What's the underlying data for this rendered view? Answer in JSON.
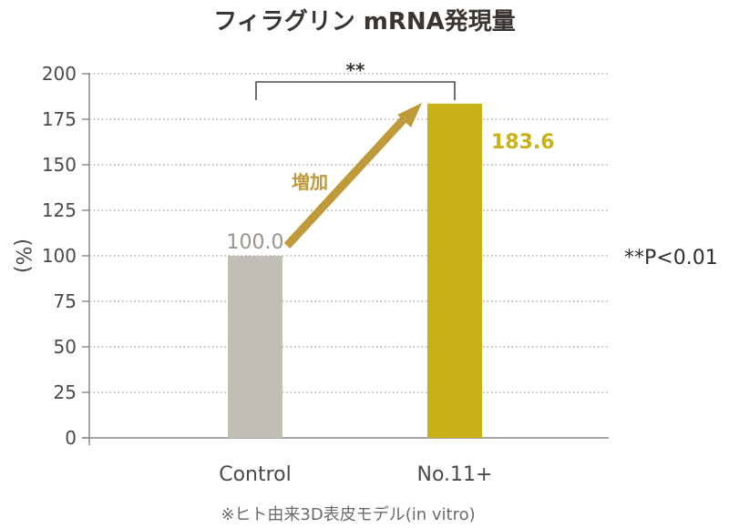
{
  "chart_data": {
    "type": "bar",
    "title": "フィラグリン mRNA発現量",
    "ylabel": "(%)",
    "xlabel": "",
    "ylim": [
      0,
      200
    ],
    "yticks": [
      0,
      25,
      50,
      75,
      100,
      125,
      150,
      175,
      200
    ],
    "grid": true,
    "categories": [
      "Control",
      "No.11+"
    ],
    "values": [
      100.0,
      183.6
    ],
    "data_labels": [
      "100.0",
      "183.6"
    ],
    "colors": [
      "#c2bdb6",
      "#c9b11a"
    ],
    "label_colors": [
      "#9a948d",
      "#c9b11a"
    ],
    "arrow_label": "増加",
    "arrow_color": "#bf9a3a",
    "significance": "**",
    "p_value_note": "**P<0.01",
    "footnote": "※ヒト由来3D表皮モデル(in vitro)"
  }
}
